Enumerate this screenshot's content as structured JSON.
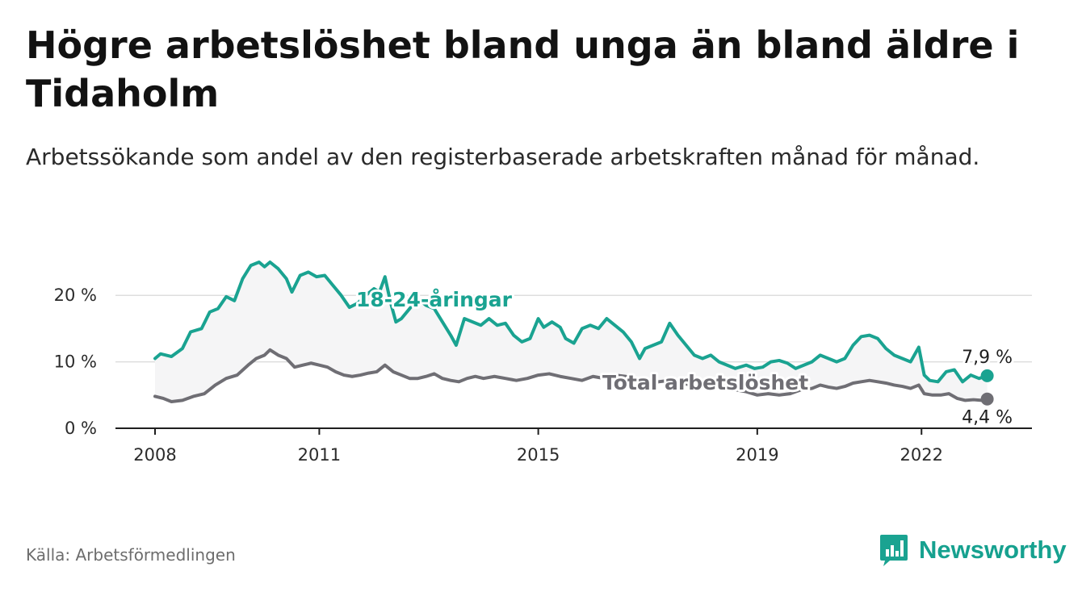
{
  "title": "Högre arbetslöshet bland unga än bland äldre i Tidaholm",
  "subtitle": "Arbetssökande som andel av den registerbaserade arbetskraften månad för månad.",
  "source": "Källa: Arbetsförmedlingen",
  "brand": {
    "name": "Newsworthy",
    "icon": "newsworthy-logo-icon"
  },
  "colors": {
    "youth": "#1aa391",
    "total": "#6f6e74",
    "band": "#f5f5f6",
    "grid": "#dedede",
    "axis": "#1f1f1f"
  },
  "chart_data": {
    "type": "line",
    "title": "Högre arbetslöshet bland unga än bland äldre i Tidaholm",
    "xlabel": "",
    "ylabel": "",
    "xlim": [
      2008,
      2023.25
    ],
    "ylim": [
      0,
      25
    ],
    "yticks": [
      0,
      10,
      20
    ],
    "ytick_labels": [
      "0 %",
      "10 %",
      "20 %"
    ],
    "xticks": [
      2008,
      2011,
      2015,
      2019,
      2022
    ],
    "xtick_labels": [
      "2008",
      "2011",
      "2015",
      "2019",
      "2022"
    ],
    "grid": true,
    "series": [
      {
        "name": "18-24-åringar",
        "label": "18-24-åringar",
        "end_label": "7,9 %",
        "points": [
          [
            2008.0,
            10.5
          ],
          [
            2008.1,
            11.2
          ],
          [
            2008.3,
            10.8
          ],
          [
            2008.5,
            12.0
          ],
          [
            2008.65,
            14.5
          ],
          [
            2008.85,
            15.0
          ],
          [
            2009.0,
            17.5
          ],
          [
            2009.15,
            18.0
          ],
          [
            2009.3,
            19.8
          ],
          [
            2009.45,
            19.2
          ],
          [
            2009.6,
            22.5
          ],
          [
            2009.75,
            24.5
          ],
          [
            2009.9,
            25.0
          ],
          [
            2010.0,
            24.3
          ],
          [
            2010.1,
            25.0
          ],
          [
            2010.25,
            24.0
          ],
          [
            2010.4,
            22.5
          ],
          [
            2010.5,
            20.5
          ],
          [
            2010.65,
            23.0
          ],
          [
            2010.8,
            23.5
          ],
          [
            2010.95,
            22.8
          ],
          [
            2011.1,
            23.0
          ],
          [
            2011.25,
            21.5
          ],
          [
            2011.4,
            20.0
          ],
          [
            2011.55,
            18.2
          ],
          [
            2011.7,
            18.8
          ],
          [
            2011.85,
            20.0
          ],
          [
            2012.0,
            21.0
          ],
          [
            2012.1,
            20.5
          ],
          [
            2012.2,
            22.8
          ],
          [
            2012.3,
            19.0
          ],
          [
            2012.4,
            16.0
          ],
          [
            2012.5,
            16.5
          ],
          [
            2012.65,
            18.0
          ],
          [
            2012.8,
            19.5
          ],
          [
            2012.95,
            18.5
          ],
          [
            2013.1,
            18.0
          ],
          [
            2013.25,
            16.0
          ],
          [
            2013.4,
            14.0
          ],
          [
            2013.5,
            12.5
          ],
          [
            2013.65,
            16.5
          ],
          [
            2013.8,
            16.0
          ],
          [
            2013.95,
            15.5
          ],
          [
            2014.1,
            16.5
          ],
          [
            2014.25,
            15.5
          ],
          [
            2014.4,
            15.8
          ],
          [
            2014.55,
            14.0
          ],
          [
            2014.7,
            13.0
          ],
          [
            2014.85,
            13.5
          ],
          [
            2015.0,
            16.5
          ],
          [
            2015.1,
            15.2
          ],
          [
            2015.25,
            16.0
          ],
          [
            2015.4,
            15.2
          ],
          [
            2015.5,
            13.5
          ],
          [
            2015.65,
            12.8
          ],
          [
            2015.8,
            15.0
          ],
          [
            2015.95,
            15.5
          ],
          [
            2016.1,
            15.0
          ],
          [
            2016.25,
            16.5
          ],
          [
            2016.4,
            15.5
          ],
          [
            2016.55,
            14.5
          ],
          [
            2016.7,
            13.0
          ],
          [
            2016.85,
            10.5
          ],
          [
            2016.95,
            12.0
          ],
          [
            2017.1,
            12.5
          ],
          [
            2017.25,
            13.0
          ],
          [
            2017.4,
            15.8
          ],
          [
            2017.55,
            14.0
          ],
          [
            2017.7,
            12.5
          ],
          [
            2017.85,
            11.0
          ],
          [
            2018.0,
            10.5
          ],
          [
            2018.15,
            11.0
          ],
          [
            2018.3,
            10.0
          ],
          [
            2018.45,
            9.5
          ],
          [
            2018.6,
            9.0
          ],
          [
            2018.8,
            9.5
          ],
          [
            2018.95,
            9.0
          ],
          [
            2019.1,
            9.2
          ],
          [
            2019.25,
            10.0
          ],
          [
            2019.4,
            10.2
          ],
          [
            2019.55,
            9.8
          ],
          [
            2019.7,
            9.0
          ],
          [
            2019.85,
            9.5
          ],
          [
            2020.0,
            10.0
          ],
          [
            2020.15,
            11.0
          ],
          [
            2020.3,
            10.5
          ],
          [
            2020.45,
            10.0
          ],
          [
            2020.6,
            10.5
          ],
          [
            2020.75,
            12.5
          ],
          [
            2020.9,
            13.8
          ],
          [
            2021.05,
            14.0
          ],
          [
            2021.2,
            13.5
          ],
          [
            2021.35,
            12.0
          ],
          [
            2021.5,
            11.0
          ],
          [
            2021.65,
            10.5
          ],
          [
            2021.8,
            10.0
          ],
          [
            2021.95,
            12.2
          ],
          [
            2022.05,
            8.0
          ],
          [
            2022.15,
            7.2
          ],
          [
            2022.3,
            7.0
          ],
          [
            2022.45,
            8.5
          ],
          [
            2022.6,
            8.8
          ],
          [
            2022.75,
            7.0
          ],
          [
            2022.9,
            8.0
          ],
          [
            2023.05,
            7.5
          ],
          [
            2023.2,
            7.9
          ]
        ]
      },
      {
        "name": "Total arbetslöshet",
        "label": "Total arbetslöshet",
        "end_label": "4,4 %",
        "points": [
          [
            2008.0,
            4.8
          ],
          [
            2008.15,
            4.5
          ],
          [
            2008.3,
            4.0
          ],
          [
            2008.5,
            4.2
          ],
          [
            2008.7,
            4.8
          ],
          [
            2008.9,
            5.2
          ],
          [
            2009.1,
            6.5
          ],
          [
            2009.3,
            7.5
          ],
          [
            2009.5,
            8.0
          ],
          [
            2009.7,
            9.5
          ],
          [
            2009.85,
            10.5
          ],
          [
            2010.0,
            11.0
          ],
          [
            2010.1,
            11.8
          ],
          [
            2010.25,
            11.0
          ],
          [
            2010.4,
            10.5
          ],
          [
            2010.55,
            9.2
          ],
          [
            2010.7,
            9.5
          ],
          [
            2010.85,
            9.8
          ],
          [
            2011.0,
            9.5
          ],
          [
            2011.15,
            9.2
          ],
          [
            2011.3,
            8.5
          ],
          [
            2011.45,
            8.0
          ],
          [
            2011.6,
            7.8
          ],
          [
            2011.75,
            8.0
          ],
          [
            2011.9,
            8.3
          ],
          [
            2012.05,
            8.5
          ],
          [
            2012.2,
            9.5
          ],
          [
            2012.35,
            8.5
          ],
          [
            2012.5,
            8.0
          ],
          [
            2012.65,
            7.5
          ],
          [
            2012.8,
            7.5
          ],
          [
            2012.95,
            7.8
          ],
          [
            2013.1,
            8.2
          ],
          [
            2013.25,
            7.5
          ],
          [
            2013.4,
            7.2
          ],
          [
            2013.55,
            7.0
          ],
          [
            2013.7,
            7.5
          ],
          [
            2013.85,
            7.8
          ],
          [
            2014.0,
            7.5
          ],
          [
            2014.2,
            7.8
          ],
          [
            2014.4,
            7.5
          ],
          [
            2014.6,
            7.2
          ],
          [
            2014.8,
            7.5
          ],
          [
            2015.0,
            8.0
          ],
          [
            2015.2,
            8.2
          ],
          [
            2015.4,
            7.8
          ],
          [
            2015.6,
            7.5
          ],
          [
            2015.8,
            7.2
          ],
          [
            2016.0,
            7.8
          ],
          [
            2016.2,
            7.5
          ],
          [
            2016.4,
            8.0
          ],
          [
            2016.6,
            7.8
          ],
          [
            2016.8,
            7.2
          ],
          [
            2017.0,
            7.0
          ],
          [
            2017.2,
            7.0
          ],
          [
            2017.4,
            7.2
          ],
          [
            2017.6,
            6.8
          ],
          [
            2017.8,
            6.5
          ],
          [
            2018.0,
            6.5
          ],
          [
            2018.2,
            6.2
          ],
          [
            2018.4,
            6.0
          ],
          [
            2018.6,
            5.8
          ],
          [
            2018.8,
            5.5
          ],
          [
            2019.0,
            5.0
          ],
          [
            2019.2,
            5.2
          ],
          [
            2019.4,
            5.0
          ],
          [
            2019.6,
            5.2
          ],
          [
            2019.8,
            5.8
          ],
          [
            2020.0,
            6.0
          ],
          [
            2020.15,
            6.5
          ],
          [
            2020.3,
            6.2
          ],
          [
            2020.45,
            6.0
          ],
          [
            2020.6,
            6.3
          ],
          [
            2020.75,
            6.8
          ],
          [
            2020.9,
            7.0
          ],
          [
            2021.05,
            7.2
          ],
          [
            2021.2,
            7.0
          ],
          [
            2021.35,
            6.8
          ],
          [
            2021.5,
            6.5
          ],
          [
            2021.65,
            6.3
          ],
          [
            2021.8,
            6.0
          ],
          [
            2021.95,
            6.5
          ],
          [
            2022.05,
            5.2
          ],
          [
            2022.2,
            5.0
          ],
          [
            2022.35,
            5.0
          ],
          [
            2022.5,
            5.2
          ],
          [
            2022.65,
            4.5
          ],
          [
            2022.8,
            4.2
          ],
          [
            2022.95,
            4.3
          ],
          [
            2023.1,
            4.2
          ],
          [
            2023.2,
            4.4
          ]
        ]
      }
    ]
  }
}
